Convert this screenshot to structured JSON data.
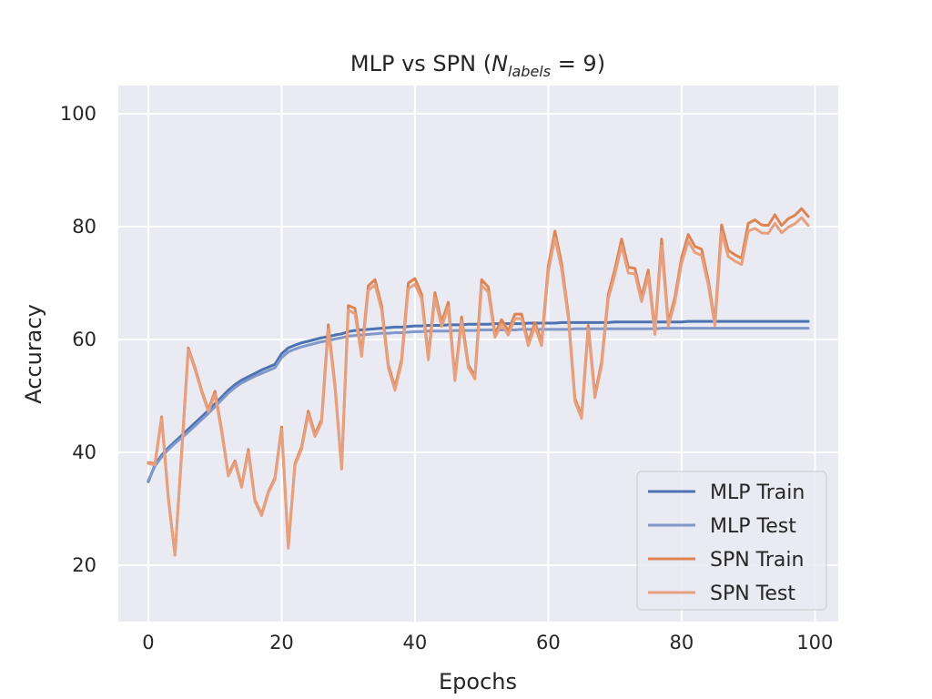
{
  "chart_data": {
    "type": "line",
    "title": {
      "prefix": "MLP vs SPN (",
      "math_base": "N",
      "math_sub": "labels",
      "math_rest": " = 9",
      "suffix": ")"
    },
    "xlabel": "Epochs",
    "ylabel": "Accuracy",
    "xlim": [
      -4.5,
      103.5
    ],
    "ylim": [
      10,
      105
    ],
    "xticks": [
      0,
      20,
      40,
      60,
      80,
      100
    ],
    "yticks": [
      20,
      40,
      60,
      80,
      100
    ],
    "grid": true,
    "legend_position": "bottom-right",
    "series": [
      {
        "name": "MLP Train",
        "color": "#4c72b0",
        "values": [
          34.8,
          37.8,
          39.5,
          40.8,
          41.9,
          43.0,
          44.1,
          45.2,
          46.3,
          47.4,
          48.6,
          49.8,
          51.0,
          52.0,
          52.8,
          53.4,
          54.0,
          54.6,
          55.1,
          55.6,
          57.5,
          58.5,
          59.0,
          59.4,
          59.7,
          60.0,
          60.3,
          60.5,
          60.8,
          61.0,
          61.4,
          61.6,
          61.7,
          61.8,
          61.9,
          62.0,
          62.1,
          62.2,
          62.2,
          62.3,
          62.4,
          62.4,
          62.5,
          62.5,
          62.5,
          62.6,
          62.6,
          62.6,
          62.7,
          62.7,
          62.7,
          62.7,
          62.8,
          62.8,
          62.8,
          62.8,
          62.8,
          62.9,
          62.9,
          62.9,
          62.9,
          62.9,
          63.0,
          63.0,
          63.0,
          63.0,
          63.0,
          63.0,
          63.0,
          63.0,
          63.1,
          63.1,
          63.1,
          63.1,
          63.1,
          63.1,
          63.1,
          63.1,
          63.1,
          63.1,
          63.1,
          63.2,
          63.2,
          63.2,
          63.2,
          63.2,
          63.2,
          63.2,
          63.2,
          63.2,
          63.2,
          63.2,
          63.2,
          63.2,
          63.2,
          63.2,
          63.2,
          63.2,
          63.2,
          63.2
        ]
      },
      {
        "name": "MLP Test",
        "color": "#8197c9",
        "values": [
          35.0,
          37.6,
          39.2,
          40.5,
          41.6,
          42.6,
          43.6,
          44.7,
          45.8,
          46.9,
          48.1,
          49.3,
          50.5,
          51.5,
          52.3,
          52.9,
          53.5,
          54.0,
          54.5,
          55.0,
          56.8,
          57.8,
          58.3,
          58.7,
          59.0,
          59.3,
          59.6,
          59.8,
          60.1,
          60.3,
          60.6,
          60.7,
          60.8,
          60.9,
          61.0,
          61.1,
          61.1,
          61.2,
          61.2,
          61.3,
          61.4,
          61.4,
          61.5,
          61.5,
          61.5,
          61.5,
          61.6,
          61.6,
          61.6,
          61.6,
          61.7,
          61.7,
          61.7,
          61.7,
          61.7,
          61.7,
          61.8,
          61.8,
          61.8,
          61.8,
          61.8,
          61.8,
          61.8,
          61.8,
          61.9,
          61.9,
          61.9,
          61.9,
          61.9,
          61.9,
          61.9,
          61.9,
          61.9,
          61.9,
          61.9,
          61.9,
          61.9,
          62.0,
          62.0,
          62.0,
          62.0,
          62.0,
          62.0,
          62.0,
          62.0,
          62.0,
          62.0,
          62.0,
          62.0,
          62.0,
          62.0,
          62.0,
          62.0,
          62.0,
          62.0,
          62.0,
          62.0,
          62.0,
          62.0,
          62.0
        ]
      },
      {
        "name": "SPN Train",
        "color": "#dd8452",
        "values": [
          38.2,
          38.0,
          46.3,
          32.0,
          21.8,
          40.0,
          58.5,
          55.0,
          51.0,
          47.5,
          50.8,
          44.0,
          36.0,
          38.5,
          34.0,
          40.5,
          31.5,
          29.0,
          33.0,
          35.5,
          44.5,
          23.2,
          38.0,
          41.0,
          47.3,
          43.2,
          45.8,
          62.6,
          52.0,
          37.2,
          66.0,
          65.5,
          57.6,
          69.5,
          70.6,
          66.0,
          55.5,
          51.5,
          56.5,
          70.0,
          70.8,
          68.0,
          57.0,
          68.3,
          63.0,
          66.6,
          53.2,
          64.0,
          55.5,
          53.5,
          70.6,
          69.3,
          61.0,
          63.5,
          61.5,
          64.5,
          64.5,
          59.5,
          63.0,
          59.5,
          73.0,
          79.2,
          73.5,
          64.5,
          49.5,
          46.5,
          62.5,
          50.2,
          56.0,
          68.0,
          72.5,
          77.8,
          72.8,
          72.6,
          67.5,
          72.3,
          61.5,
          77.8,
          63.0,
          67.5,
          74.5,
          78.6,
          76.5,
          76.0,
          70.5,
          63.0,
          80.3,
          75.8,
          75.0,
          74.4,
          80.6,
          81.2,
          80.3,
          80.2,
          82.1,
          80.2,
          81.4,
          82.0,
          83.2,
          81.8
        ]
      },
      {
        "name": "SPN Test",
        "color": "#e6a07f",
        "values": [
          38.0,
          37.8,
          46.0,
          31.8,
          21.8,
          39.6,
          58.2,
          54.7,
          50.7,
          47.2,
          50.3,
          43.6,
          35.8,
          38.2,
          33.8,
          40.1,
          31.3,
          28.8,
          32.8,
          35.2,
          44.1,
          23.0,
          37.7,
          40.6,
          46.8,
          42.8,
          45.3,
          61.8,
          51.5,
          37.0,
          65.2,
          64.6,
          57.0,
          68.7,
          69.7,
          65.2,
          55.0,
          51.0,
          55.9,
          69.0,
          69.8,
          67.2,
          56.4,
          67.4,
          62.3,
          65.7,
          52.7,
          63.2,
          55.0,
          53.0,
          69.6,
          68.4,
          60.4,
          62.7,
          60.8,
          63.7,
          63.7,
          58.9,
          62.3,
          58.9,
          72.0,
          78.0,
          72.5,
          63.8,
          49.0,
          46.0,
          61.8,
          49.7,
          55.4,
          67.2,
          71.5,
          76.6,
          71.8,
          71.6,
          66.7,
          71.3,
          60.9,
          76.6,
          62.3,
          66.7,
          73.5,
          77.4,
          75.4,
          74.9,
          69.7,
          62.4,
          79.0,
          74.7,
          73.9,
          73.3,
          79.2,
          79.7,
          78.9,
          78.8,
          80.6,
          78.9,
          79.9,
          80.5,
          81.6,
          80.2
        ]
      }
    ]
  }
}
